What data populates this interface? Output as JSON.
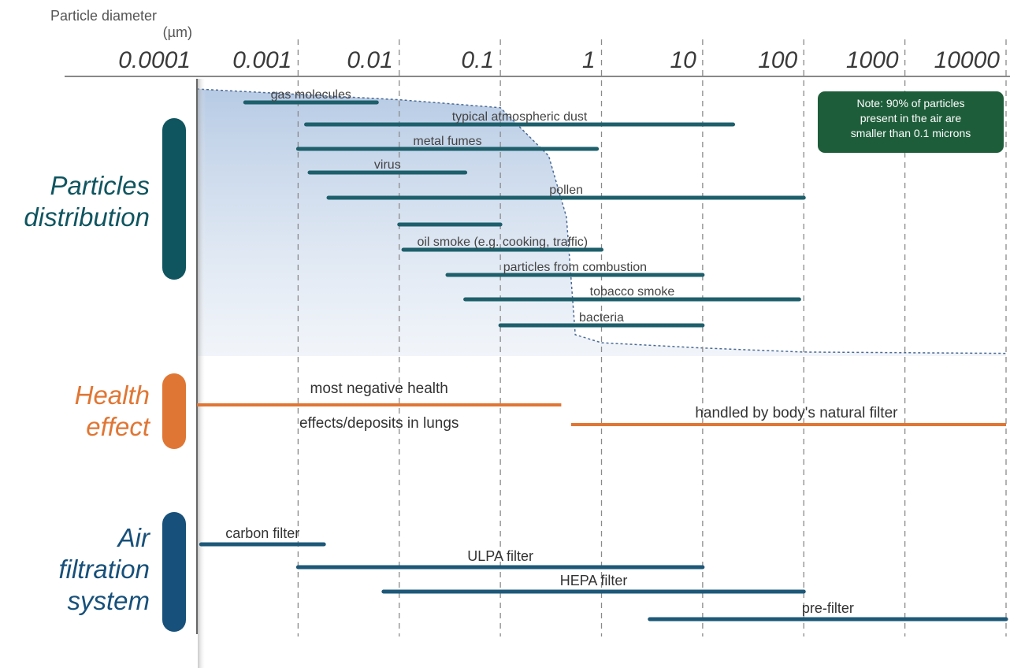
{
  "header": {
    "axis_title_line1": "Particle diameter",
    "axis_title_line2": "(µm)"
  },
  "sections": [
    {
      "key": "particles",
      "label_line1": "Particles",
      "label_line2": "distribution",
      "color": "#0f5560"
    },
    {
      "key": "health",
      "label_line1": "Health",
      "label_line2": "effect",
      "color": "#e07634"
    },
    {
      "key": "filtration",
      "label_line1": "Air",
      "label_line2": "filtration",
      "label_line3": "system",
      "color": "#17507a"
    }
  ],
  "note": {
    "line1": "Note: 90% of particles",
    "line2": "present in the air are",
    "line3": "smaller than 0.1 microns"
  },
  "colors": {
    "particle_bar": "#1d5f6b",
    "health_bar": "#e07634",
    "filter_bar": "#1d5878",
    "distribution_fill": "#bccfe6",
    "note_bg": "#1e5d3a"
  },
  "chart_data": {
    "type": "range-bar",
    "x_scale": "log",
    "x_unit": "µm",
    "xlim": [
      0.0001,
      10000
    ],
    "x_ticks": [
      0.0001,
      0.001,
      0.01,
      0.1,
      1,
      10,
      100,
      1000,
      10000
    ],
    "x_tick_labels": [
      "0.0001",
      "0.001",
      "0.01",
      "0.1",
      "1",
      "10",
      "100",
      "1000",
      "10000"
    ],
    "particles": [
      {
        "name": "gas molecules",
        "min": 0.0003,
        "max": 0.006
      },
      {
        "name": "typical atmospheric dust",
        "min": 0.0012,
        "max": 20
      },
      {
        "name": "metal fumes",
        "min": 0.001,
        "max": 0.9
      },
      {
        "name": "virus",
        "min": 0.0013,
        "max": 0.045
      },
      {
        "name": "pollen",
        "min": 0.002,
        "max": 100
      },
      {
        "name": "",
        "min": 0.01,
        "max": 0.1
      },
      {
        "name": "oil smoke (e.g. cooking, traffic)",
        "min": 0.011,
        "max": 1
      },
      {
        "name": "particles from combustion",
        "min": 0.03,
        "max": 10
      },
      {
        "name": "tobacco smoke",
        "min": 0.045,
        "max": 90
      },
      {
        "name": "bacteria",
        "min": 0.1,
        "max": 10
      }
    ],
    "distribution_curve": [
      {
        "x": 0.0001,
        "y": 1.0
      },
      {
        "x": 0.001,
        "y": 0.98
      },
      {
        "x": 0.01,
        "y": 0.96
      },
      {
        "x": 0.1,
        "y": 0.93
      },
      {
        "x": 0.3,
        "y": 0.75
      },
      {
        "x": 0.45,
        "y": 0.52
      },
      {
        "x": 0.55,
        "y": 0.08
      },
      {
        "x": 1,
        "y": 0.05
      },
      {
        "x": 10,
        "y": 0.03
      },
      {
        "x": 100,
        "y": 0.015
      },
      {
        "x": 10000,
        "y": 0.01
      }
    ],
    "health": [
      {
        "name_line1": "most negative health",
        "name_line2": "effects/deposits in lungs",
        "min": 0.0001,
        "max": 0.4
      },
      {
        "name_line1": "handled by body's natural filter",
        "name_line2": "",
        "min": 0.5,
        "max": 10000
      }
    ],
    "filters": [
      {
        "name": "carbon filter",
        "min": 0.00011,
        "max": 0.0018
      },
      {
        "name": "ULPA filter",
        "min": 0.001,
        "max": 10
      },
      {
        "name": "HEPA filter",
        "min": 0.007,
        "max": 100
      },
      {
        "name": "pre-filter",
        "min": 3,
        "max": 10000
      }
    ]
  }
}
